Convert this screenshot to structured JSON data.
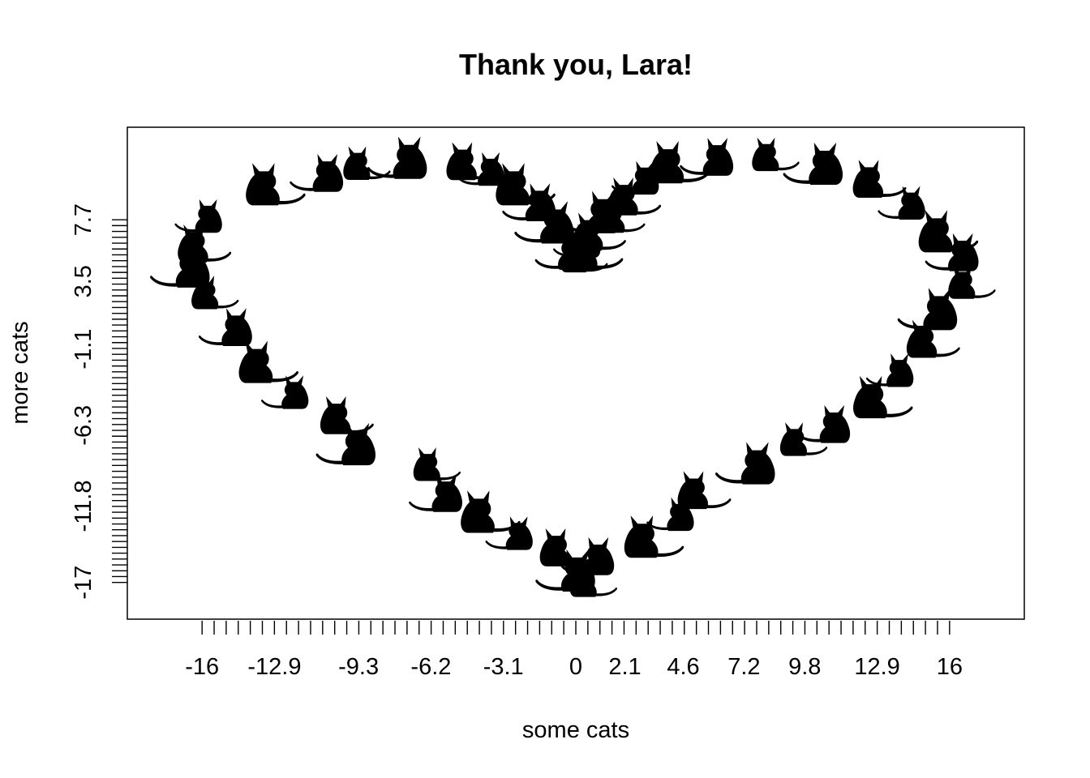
{
  "chart_data": {
    "type": "scatter",
    "title": "Thank you, Lara!",
    "xlabel": "some cats",
    "ylabel": "more cats",
    "marker": "cat-silhouette",
    "x_ticks": {
      "labels": [
        "-16",
        "-12.9",
        "-9.3",
        "-6.2",
        "-3.1",
        "0",
        "2.1",
        "4.6",
        "7.2",
        "9.8",
        "12.9",
        "16"
      ],
      "values": [
        -16,
        -12.9,
        -9.3,
        -6.2,
        -3.1,
        0,
        2.1,
        4.6,
        7.2,
        9.8,
        12.9,
        16
      ],
      "minor_count": 63
    },
    "y_ticks": {
      "labels": [
        "-17",
        "-11.8",
        "-6.3",
        "-1.1",
        "3.5",
        "7.7"
      ],
      "values": [
        -17,
        -11.8,
        -6.3,
        -1.1,
        3.5,
        7.7
      ],
      "minor_count": 63
    },
    "xlim": [
      -19.2,
      19.2
    ],
    "ylim": [
      -19.5,
      14.0
    ],
    "grid": false,
    "points": [
      {
        "x": 0.0,
        "y": 5.0
      },
      {
        "x": -0.2,
        "y": 5.3
      },
      {
        "x": 0.3,
        "y": 5.4
      },
      {
        "x": 0.4,
        "y": 6.0
      },
      {
        "x": 0.6,
        "y": 6.6
      },
      {
        "x": -0.9,
        "y": 7.2
      },
      {
        "x": 1.6,
        "y": 7.7
      },
      {
        "x": -1.6,
        "y": 8.6
      },
      {
        "x": -2.6,
        "y": 9.8
      },
      {
        "x": -3.7,
        "y": 10.9
      },
      {
        "x": -4.8,
        "y": 11.4
      },
      {
        "x": -7.2,
        "y": 11.6
      },
      {
        "x": -9.3,
        "y": 11.3
      },
      {
        "x": -10.7,
        "y": 10.6
      },
      {
        "x": -13.3,
        "y": 9.8
      },
      {
        "x": -15.8,
        "y": 7.7
      },
      {
        "x": -16.3,
        "y": 5.8
      },
      {
        "x": -16.5,
        "y": 4.2
      },
      {
        "x": -15.8,
        "y": 2.5
      },
      {
        "x": -14.6,
        "y": 0.1
      },
      {
        "x": -13.6,
        "y": -2.3
      },
      {
        "x": -12.1,
        "y": -4.3
      },
      {
        "x": -10.2,
        "y": -5.9
      },
      {
        "x": -9.4,
        "y": -7.9
      },
      {
        "x": -6.3,
        "y": -9.2
      },
      {
        "x": -5.6,
        "y": -11.2
      },
      {
        "x": -4.1,
        "y": -12.5
      },
      {
        "x": -2.5,
        "y": -13.9
      },
      {
        "x": -0.8,
        "y": -14.9
      },
      {
        "x": 0.0,
        "y": -16.5
      },
      {
        "x": 0.4,
        "y": -17.1
      },
      {
        "x": 0.9,
        "y": -15.5
      },
      {
        "x": 2.9,
        "y": -14.2
      },
      {
        "x": 4.4,
        "y": -12.6
      },
      {
        "x": 5.1,
        "y": -11.0
      },
      {
        "x": 7.7,
        "y": -9.2
      },
      {
        "x": 9.4,
        "y": -7.5
      },
      {
        "x": 11.0,
        "y": -6.5
      },
      {
        "x": 12.7,
        "y": -4.7
      },
      {
        "x": 13.8,
        "y": -2.8
      },
      {
        "x": 14.9,
        "y": -0.7
      },
      {
        "x": 15.5,
        "y": 1.3
      },
      {
        "x": 16.6,
        "y": 3.2
      },
      {
        "x": 16.5,
        "y": 5.2
      },
      {
        "x": 15.5,
        "y": 6.6
      },
      {
        "x": 14.3,
        "y": 8.6
      },
      {
        "x": 12.6,
        "y": 10.2
      },
      {
        "x": 10.6,
        "y": 11.2
      },
      {
        "x": 8.2,
        "y": 11.9
      },
      {
        "x": 6.0,
        "y": 11.7
      },
      {
        "x": 4.0,
        "y": 11.3
      },
      {
        "x": 2.9,
        "y": 10.3
      },
      {
        "x": 2.1,
        "y": 9.0
      },
      {
        "x": 1.1,
        "y": 7.9
      }
    ]
  }
}
